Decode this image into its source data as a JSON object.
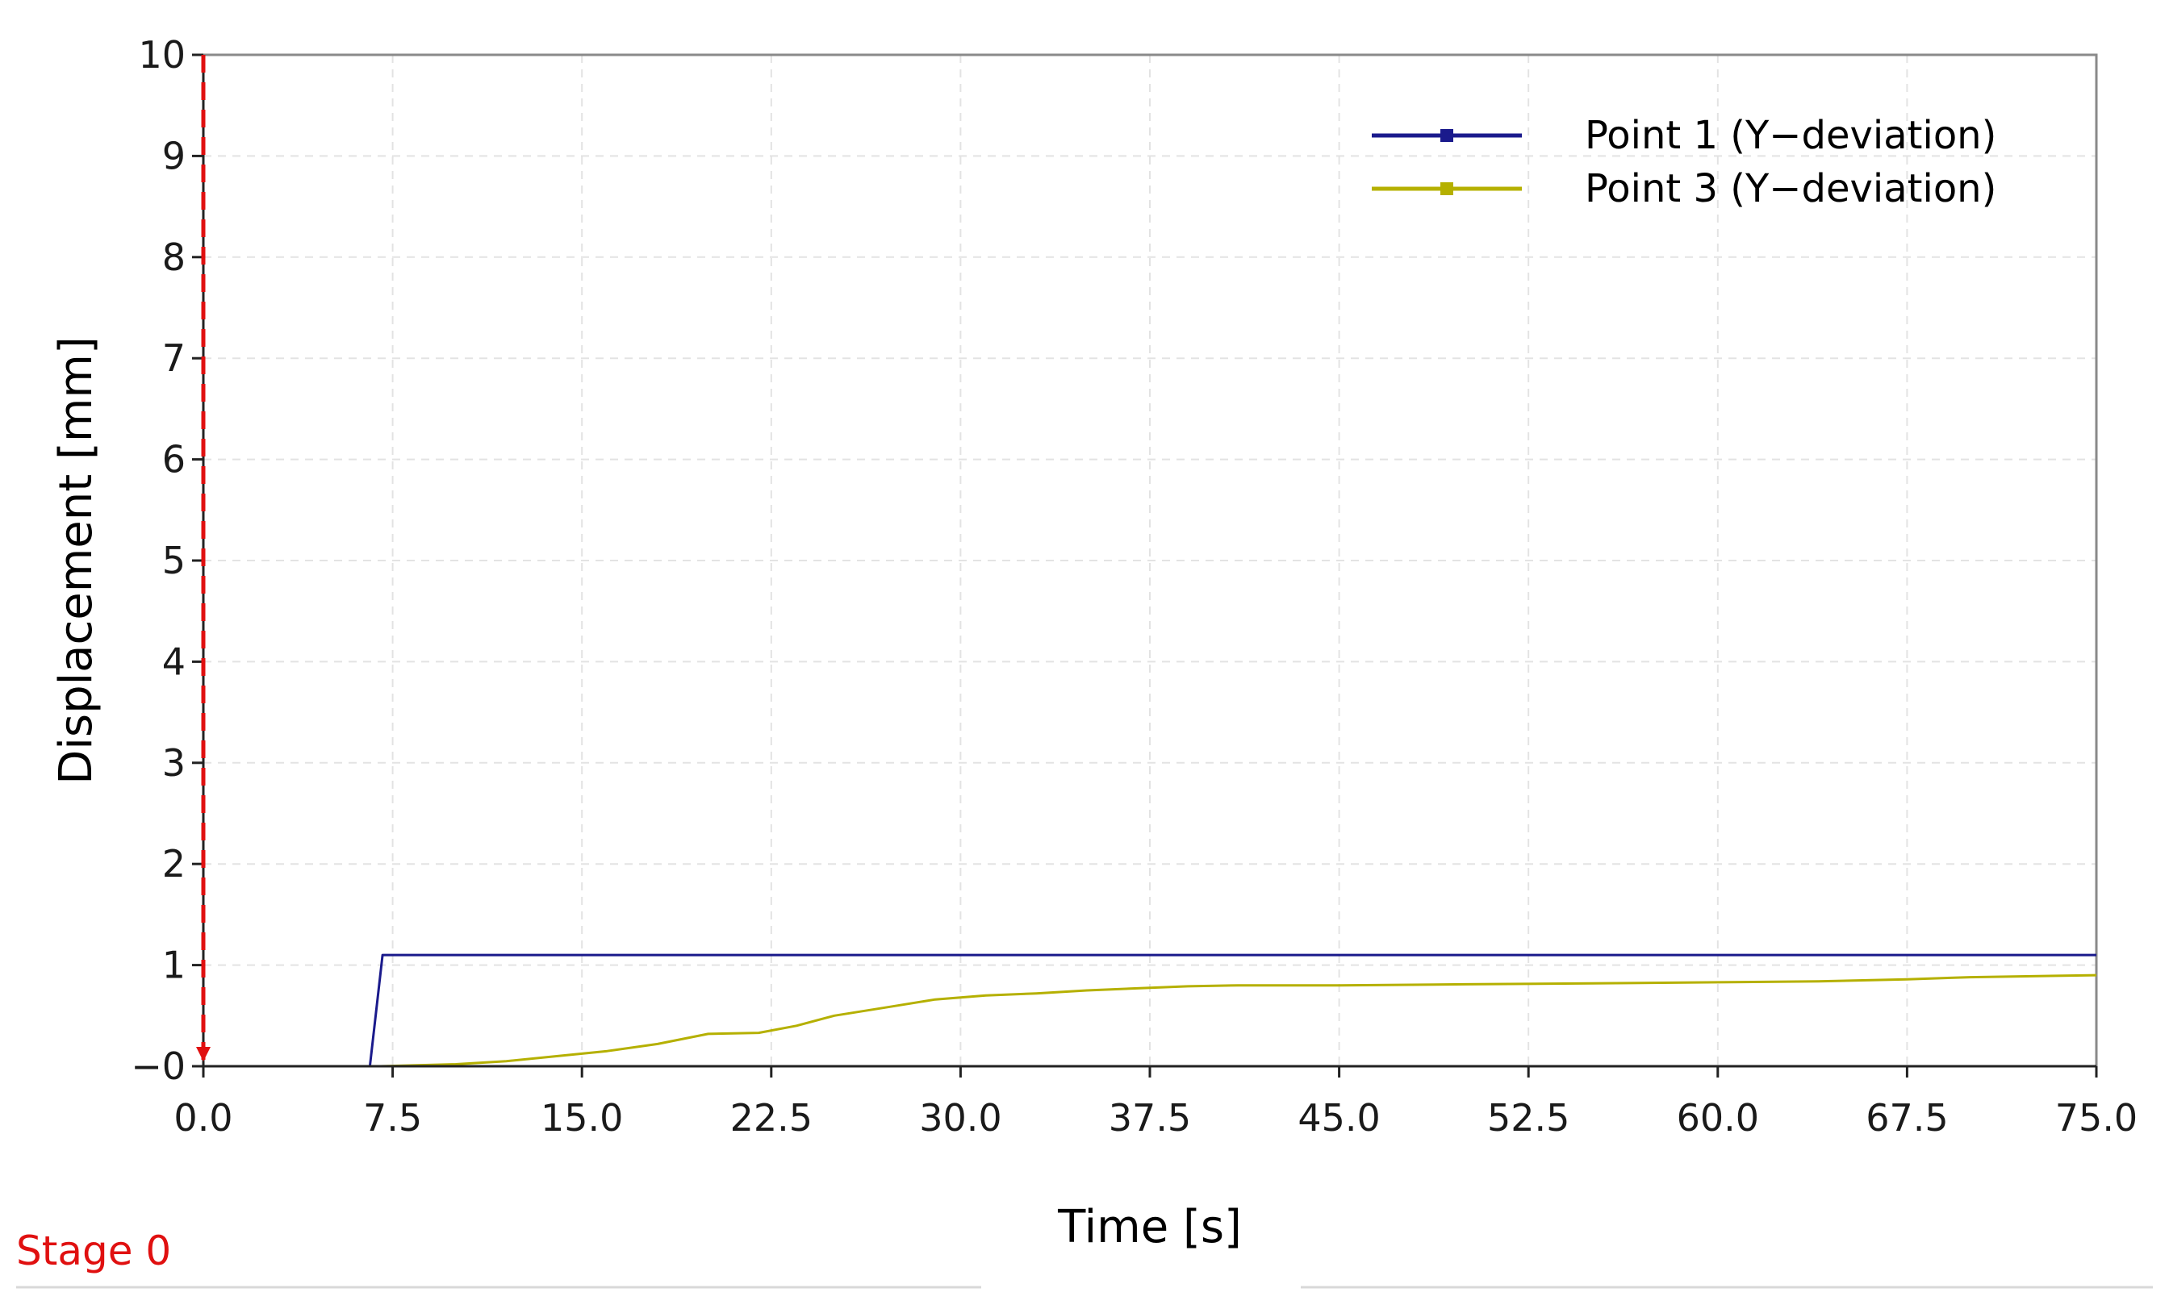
{
  "chart_data": {
    "type": "line",
    "xlabel": "Time [s]",
    "ylabel": "Displacement [mm]",
    "xlim": [
      0,
      75
    ],
    "ylim": [
      0,
      10
    ],
    "x_ticks": [
      "0.0",
      "7.5",
      "15.0",
      "22.5",
      "30.0",
      "37.5",
      "45.0",
      "52.5",
      "60.0",
      "67.5",
      "75.0"
    ],
    "y_ticks": [
      "−0",
      "1",
      "2",
      "3",
      "4",
      "5",
      "6",
      "7",
      "8",
      "9",
      "10"
    ],
    "grid": true,
    "legend_position": "top-right",
    "series": [
      {
        "name": "Point 1 (Y−deviation)",
        "color": "#1a1a8c",
        "x": [
          0,
          6.6,
          7.1,
          75
        ],
        "y": [
          0,
          0,
          1.1,
          1.1
        ]
      },
      {
        "name": "Point 3 (Y−deviation)",
        "color": "#b5b000",
        "x": [
          0,
          7.0,
          10.0,
          12.0,
          14.0,
          16.0,
          18.0,
          20.0,
          22.0,
          23.5,
          25.0,
          27.0,
          29.0,
          31.0,
          33.0,
          35.0,
          37.0,
          39.0,
          41.0,
          45.0,
          50.0,
          55.0,
          60.0,
          64.0,
          67.5,
          70.0,
          75.0
        ],
        "y": [
          0,
          0,
          0.02,
          0.05,
          0.1,
          0.15,
          0.22,
          0.32,
          0.33,
          0.4,
          0.5,
          0.58,
          0.66,
          0.7,
          0.72,
          0.75,
          0.77,
          0.79,
          0.8,
          0.8,
          0.81,
          0.82,
          0.83,
          0.84,
          0.86,
          0.88,
          0.9
        ]
      }
    ],
    "marker": {
      "label": "Stage 0",
      "x": 0,
      "color": "#e01010"
    }
  }
}
